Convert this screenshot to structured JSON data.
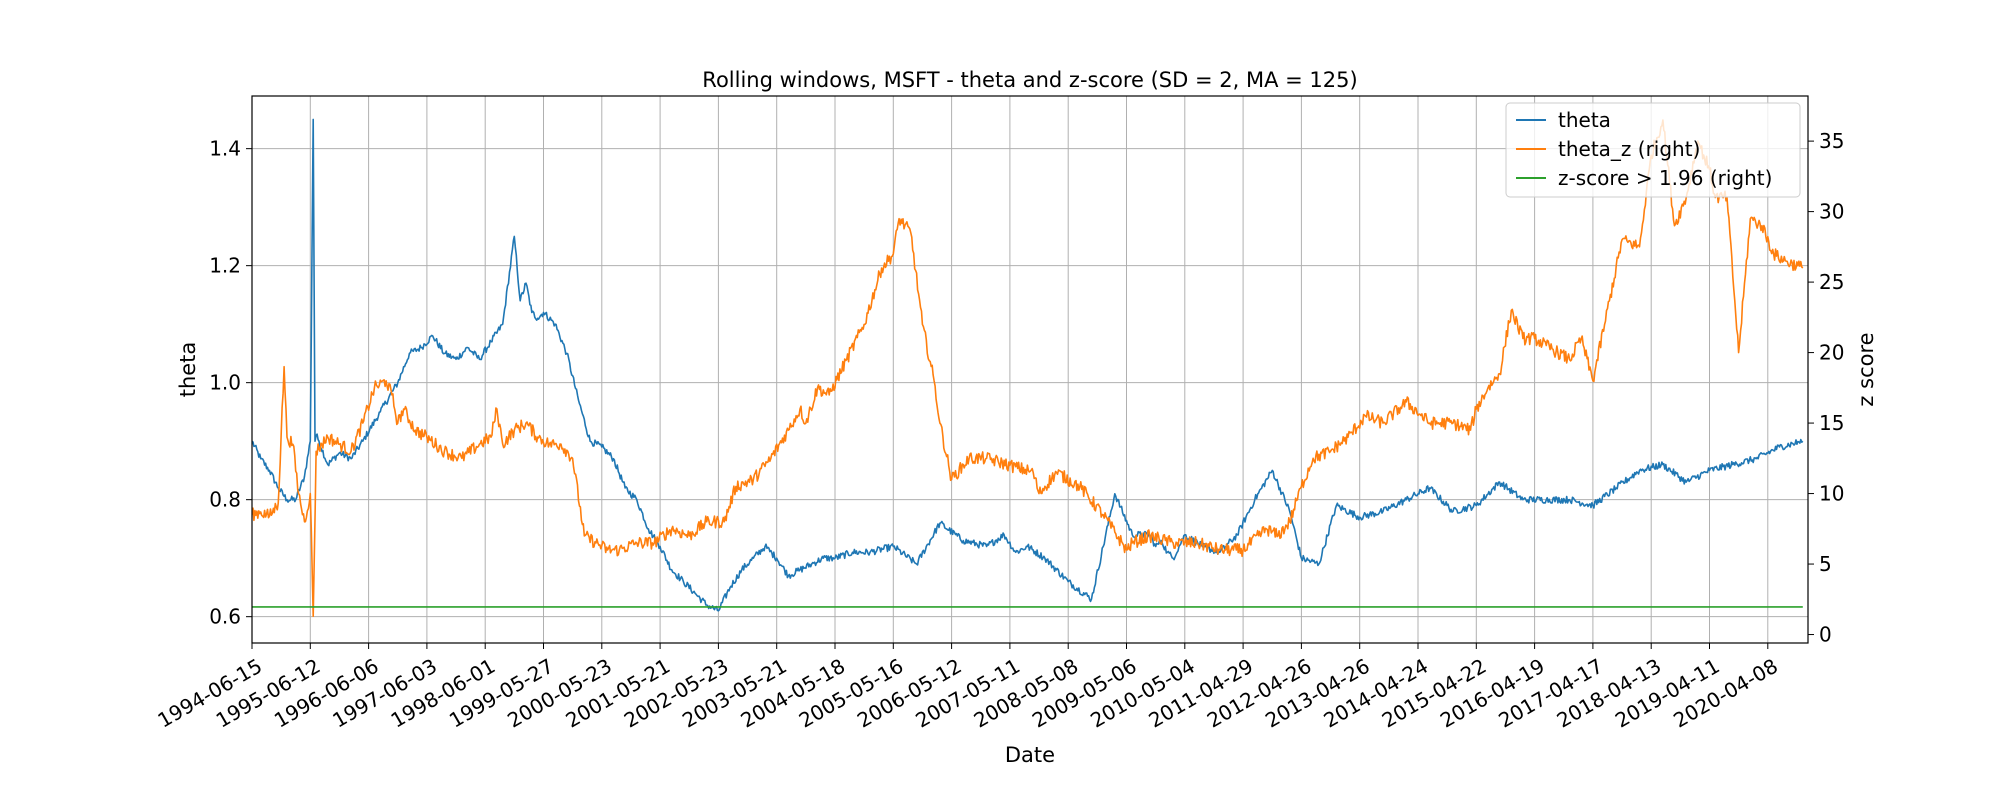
{
  "chart_data": {
    "type": "line",
    "title": "Rolling windows, MSFT - theta and z-score (SD = 2, MA = 125)",
    "xlabel": "Date",
    "ylabel": "theta",
    "y2label": "z score",
    "ylim": [
      0.555,
      1.49
    ],
    "y2lim": [
      -0.6,
      38.2
    ],
    "yticks": [
      0.6,
      0.8,
      1.0,
      1.2,
      1.4
    ],
    "yticklabels": [
      "0.6",
      "0.8",
      "1.0",
      "1.2",
      "1.4"
    ],
    "y2ticks": [
      0,
      5,
      10,
      15,
      20,
      25,
      30,
      35
    ],
    "y2ticklabels": [
      "0",
      "5",
      "10",
      "15",
      "20",
      "25",
      "30",
      "35"
    ],
    "xticklabels": [
      "1994-06-15",
      "1995-06-12",
      "1996-06-06",
      "1997-06-03",
      "1998-06-01",
      "1999-05-27",
      "2000-05-23",
      "2001-05-21",
      "2002-05-23",
      "2003-05-21",
      "2004-05-18",
      "2005-05-16",
      "2006-05-12",
      "2007-05-11",
      "2008-05-08",
      "2009-05-06",
      "2010-05-04",
      "2011-04-29",
      "2012-04-26",
      "2013-04-26",
      "2014-04-24",
      "2015-04-22",
      "2016-04-19",
      "2017-04-17",
      "2018-04-13",
      "2019-04-11",
      "2020-04-08"
    ],
    "grid": true,
    "legend_position": "upper right",
    "legend": [
      "theta",
      "theta_z (right)",
      "z-score > 1.96 (right)"
    ],
    "series": [
      {
        "name": "theta",
        "axis": "left",
        "color": "#1f77b4",
        "x": [
          0,
          0.15,
          0.3,
          0.45,
          0.6,
          0.75,
          0.9,
          1.0,
          1.05,
          1.08,
          1.1,
          1.15,
          1.3,
          1.5,
          1.7,
          1.9,
          2.2,
          2.5,
          2.7,
          2.9,
          3.1,
          3.3,
          3.5,
          3.7,
          3.9,
          4.1,
          4.3,
          4.5,
          4.6,
          4.7,
          4.8,
          4.9,
          5.0,
          5.2,
          5.4,
          5.6,
          5.8,
          6.0,
          6.2,
          6.4,
          6.6,
          6.8,
          7.0,
          7.2,
          7.4,
          7.6,
          7.8,
          8.0,
          8.2,
          8.4,
          8.6,
          8.8,
          9.0,
          9.2,
          9.4,
          9.6,
          9.8,
          10.0,
          10.3,
          10.6,
          11.0,
          11.4,
          11.8,
          12.2,
          12.6,
          12.9,
          13.1,
          13.3,
          13.6,
          14.0,
          14.4,
          14.8,
          15.1,
          15.4,
          15.5,
          15.6,
          15.7,
          15.8,
          16.0,
          16.3,
          16.6,
          16.9,
          17.2,
          17.5,
          17.8,
          18.0,
          18.3,
          18.6,
          19.0,
          19.4,
          19.8,
          20.2,
          20.6,
          21.0,
          21.4,
          21.8,
          22.2,
          22.6,
          23.0,
          23.4,
          23.8,
          24.2,
          24.6,
          25.0,
          25.4,
          25.8,
          26.2,
          26.6
        ],
        "values": [
          0.9,
          0.87,
          0.85,
          0.82,
          0.8,
          0.8,
          0.84,
          0.9,
          1.45,
          0.9,
          0.91,
          0.9,
          0.86,
          0.88,
          0.87,
          0.9,
          0.95,
          1.0,
          1.05,
          1.06,
          1.08,
          1.05,
          1.04,
          1.06,
          1.04,
          1.07,
          1.1,
          1.25,
          1.14,
          1.17,
          1.12,
          1.11,
          1.12,
          1.1,
          1.05,
          0.97,
          0.9,
          0.89,
          0.87,
          0.82,
          0.8,
          0.75,
          0.72,
          0.68,
          0.66,
          0.64,
          0.62,
          0.61,
          0.65,
          0.68,
          0.7,
          0.72,
          0.7,
          0.67,
          0.68,
          0.69,
          0.7,
          0.7,
          0.71,
          0.71,
          0.72,
          0.69,
          0.76,
          0.73,
          0.72,
          0.74,
          0.71,
          0.72,
          0.7,
          0.66,
          0.63,
          0.81,
          0.74,
          0.74,
          0.72,
          0.73,
          0.71,
          0.7,
          0.74,
          0.72,
          0.71,
          0.74,
          0.8,
          0.85,
          0.78,
          0.7,
          0.69,
          0.79,
          0.77,
          0.78,
          0.8,
          0.82,
          0.78,
          0.79,
          0.83,
          0.8,
          0.8,
          0.8,
          0.79,
          0.82,
          0.85,
          0.86,
          0.83,
          0.85,
          0.86,
          0.87,
          0.89,
          0.9
        ]
      },
      {
        "name": "theta_z (right)",
        "axis": "right",
        "color": "#ff7f0e",
        "x": [
          0,
          0.15,
          0.3,
          0.45,
          0.55,
          0.6,
          0.7,
          0.8,
          0.9,
          1.0,
          1.05,
          1.1,
          1.2,
          1.3,
          1.5,
          1.7,
          1.9,
          2.1,
          2.3,
          2.4,
          2.5,
          2.6,
          2.8,
          3.0,
          3.3,
          3.6,
          3.9,
          4.1,
          4.2,
          4.3,
          4.5,
          4.7,
          4.9,
          5.1,
          5.3,
          5.5,
          5.7,
          5.9,
          6.1,
          6.3,
          6.6,
          6.9,
          7.2,
          7.5,
          7.8,
          8.1,
          8.3,
          8.6,
          8.9,
          9.2,
          9.4,
          9.5,
          9.7,
          9.9,
          10.2,
          10.5,
          10.8,
          11.0,
          11.1,
          11.3,
          11.5,
          11.7,
          11.8,
          12.0,
          12.3,
          12.6,
          13.0,
          13.4,
          13.5,
          13.8,
          14.2,
          14.6,
          15.0,
          15.1,
          15.4,
          15.8,
          16.2,
          16.6,
          17.0,
          17.4,
          17.6,
          17.8,
          18.0,
          18.2,
          18.5,
          18.8,
          19.1,
          19.4,
          19.8,
          20.2,
          20.6,
          20.9,
          21.0,
          21.2,
          21.4,
          21.6,
          21.8,
          22.0,
          22.2,
          22.4,
          22.6,
          22.8,
          23.0,
          23.2,
          23.5,
          23.8,
          24.0,
          24.2,
          24.4,
          24.6,
          24.8,
          25.0,
          25.1,
          25.3,
          25.5,
          25.7,
          25.9,
          26.1,
          26.3,
          26.6
        ],
        "values": [
          8.5,
          8.7,
          8.4,
          9.3,
          19.0,
          14.0,
          13.5,
          10.0,
          8.0,
          10.0,
          1.3,
          13.0,
          13.5,
          14.0,
          13.5,
          13.0,
          15.0,
          17.5,
          18.0,
          17.0,
          15.0,
          16.0,
          14.5,
          14.0,
          13.0,
          12.5,
          13.5,
          14.0,
          16.0,
          13.5,
          14.5,
          15.0,
          14.0,
          13.5,
          13.5,
          12.5,
          7.0,
          6.5,
          6.0,
          6.0,
          6.5,
          6.5,
          7.5,
          7.0,
          8.0,
          8.0,
          10.5,
          11.0,
          12.5,
          14.5,
          16.0,
          15.0,
          17.5,
          17.0,
          19.5,
          22.0,
          26.0,
          27.0,
          29.5,
          28.5,
          22.0,
          18.0,
          15.0,
          11.0,
          12.5,
          12.5,
          12.0,
          11.5,
          10.0,
          11.5,
          10.5,
          8.5,
          6.0,
          6.5,
          7.0,
          6.5,
          6.5,
          6.0,
          6.0,
          7.5,
          7.0,
          8.0,
          10.5,
          12.5,
          13.0,
          14.0,
          15.5,
          15.0,
          16.5,
          15.0,
          15.0,
          14.5,
          16.0,
          17.5,
          18.5,
          23.0,
          21.0,
          21.0,
          20.5,
          20.0,
          19.5,
          21.0,
          18.0,
          22.0,
          28.0,
          27.5,
          34.0,
          36.5,
          29.0,
          31.0,
          35.0,
          33.0,
          31.0,
          31.0,
          20.0,
          29.5,
          29.0,
          27.0,
          26.5,
          26.0
        ]
      },
      {
        "name": "z-score > 1.96 (right)",
        "axis": "right",
        "color": "#2ca02c",
        "x": [
          0,
          26.6
        ],
        "values": [
          1.96,
          1.96
        ]
      }
    ]
  }
}
